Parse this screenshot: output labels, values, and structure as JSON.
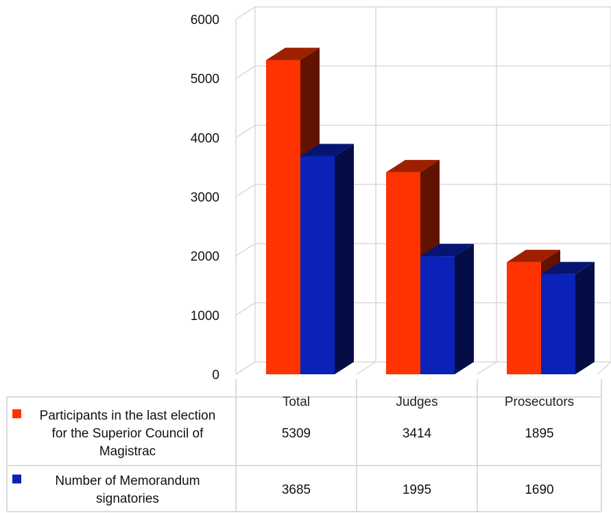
{
  "chart_data": {
    "type": "bar",
    "categories": [
      "Total",
      "Judges",
      "Prosecutors"
    ],
    "series": [
      {
        "name": "Participants in the last election for the Superior Council of Magistrac",
        "name_lines": [
          "Participants in the last election",
          "for the Superior Council of",
          "Magistrac"
        ],
        "values": [
          5309,
          3414,
          1895
        ],
        "value_labels": [
          "5309",
          "3414",
          "1895"
        ],
        "color": "#ff3300"
      },
      {
        "name": "Number of Memorandum signatories",
        "name_lines": [
          "Number of Memorandum",
          "signatories"
        ],
        "values": [
          3685,
          1995,
          1690
        ],
        "value_labels": [
          "3685",
          "1995",
          "1690"
        ],
        "color": "#0a22b8"
      }
    ],
    "title": "",
    "xlabel": "",
    "ylabel": "",
    "ylim": [
      0,
      6000
    ],
    "yticks": [
      "0",
      "1000",
      "2000",
      "3000",
      "4000",
      "5000",
      "6000"
    ],
    "grid": true,
    "legend": "data-table-left",
    "style": "3d-clustered-column"
  }
}
